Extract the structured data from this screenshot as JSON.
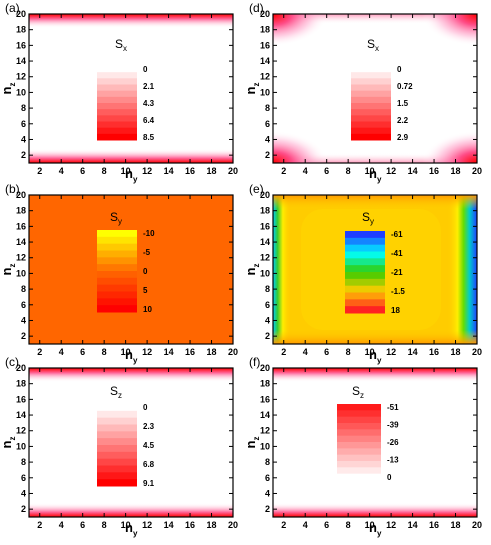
{
  "chart_data": [
    {
      "panel": "(a)",
      "type": "heatmap",
      "component": "S",
      "subscript": "x",
      "xlabel": "n",
      "xlabel_sub": "y",
      "ylabel": "n",
      "ylabel_sub": "z",
      "x_ticks": [
        "2",
        "4",
        "6",
        "8",
        "10",
        "12",
        "14",
        "16",
        "18",
        "20"
      ],
      "y_ticks": [
        "2",
        "4",
        "6",
        "8",
        "10",
        "12",
        "14",
        "16",
        "18",
        "20"
      ],
      "xlim": [
        1,
        20
      ],
      "ylim": [
        1,
        20
      ],
      "colorbar": {
        "ticks": [
          "0",
          "2.1",
          "4.3",
          "6.4",
          "8.5"
        ],
        "values": [
          0,
          2.1,
          4.3,
          6.4,
          8.5
        ],
        "colors": [
          "#ffffff",
          "#ff0000"
        ]
      },
      "pattern": "edges-z"
    },
    {
      "panel": "(b)",
      "type": "heatmap",
      "component": "S",
      "subscript": "y",
      "xlabel": "n",
      "xlabel_sub": "y",
      "ylabel": "n",
      "ylabel_sub": "z",
      "x_ticks": [
        "2",
        "4",
        "6",
        "8",
        "10",
        "12",
        "14",
        "16",
        "18",
        "20"
      ],
      "y_ticks": [
        "2",
        "4",
        "6",
        "8",
        "10",
        "12",
        "14",
        "16",
        "18",
        "20"
      ],
      "xlim": [
        1,
        20
      ],
      "ylim": [
        1,
        20
      ],
      "colorbar": {
        "ticks": [
          "-10",
          "-5",
          "0",
          "5",
          "10"
        ],
        "values": [
          -10,
          -5,
          0,
          5,
          10
        ],
        "colors": [
          "#ffff00",
          "#ff6a00",
          "#ff0000"
        ]
      },
      "pattern": "uniform",
      "uniform_color": "#ff6600"
    },
    {
      "panel": "(c)",
      "type": "heatmap",
      "component": "S",
      "subscript": "z",
      "xlabel": "n",
      "xlabel_sub": "y",
      "ylabel": "n",
      "ylabel_sub": "z",
      "x_ticks": [
        "2",
        "4",
        "6",
        "8",
        "10",
        "12",
        "14",
        "16",
        "18",
        "20"
      ],
      "y_ticks": [
        "2",
        "4",
        "6",
        "8",
        "10",
        "12",
        "14",
        "16",
        "18",
        "20"
      ],
      "xlim": [
        1,
        20
      ],
      "ylim": [
        1,
        20
      ],
      "colorbar": {
        "ticks": [
          "0",
          "2.3",
          "4.5",
          "6.8",
          "9.1"
        ],
        "values": [
          0,
          2.3,
          4.5,
          6.8,
          9.1
        ],
        "colors": [
          "#ffffff",
          "#ff0000"
        ]
      },
      "pattern": "edges-z"
    },
    {
      "panel": "(d)",
      "type": "heatmap",
      "component": "S",
      "subscript": "x",
      "xlabel": "n",
      "xlabel_sub": "y",
      "ylabel": "n",
      "ylabel_sub": "z",
      "x_ticks": [
        "2",
        "4",
        "6",
        "8",
        "10",
        "12",
        "14",
        "16",
        "18",
        "20"
      ],
      "y_ticks": [
        "2",
        "4",
        "6",
        "8",
        "10",
        "12",
        "14",
        "16",
        "18",
        "20"
      ],
      "xlim": [
        1,
        20
      ],
      "ylim": [
        1,
        20
      ],
      "colorbar": {
        "ticks": [
          "0",
          "0.72",
          "1.5",
          "2.2",
          "2.9"
        ],
        "values": [
          0,
          0.72,
          1.5,
          2.2,
          2.9
        ],
        "colors": [
          "#ffffff",
          "#ff0000"
        ]
      },
      "pattern": "corners"
    },
    {
      "panel": "(e)",
      "type": "heatmap",
      "component": "S",
      "subscript": "y",
      "xlabel": "n",
      "xlabel_sub": "y",
      "ylabel": "n",
      "ylabel_sub": "z",
      "x_ticks": [
        "2",
        "4",
        "6",
        "8",
        "10",
        "12",
        "14",
        "16",
        "18",
        "20"
      ],
      "y_ticks": [
        "2",
        "4",
        "6",
        "8",
        "10",
        "12",
        "14",
        "16",
        "18",
        "20"
      ],
      "xlim": [
        1,
        20
      ],
      "ylim": [
        1,
        20
      ],
      "colorbar": {
        "ticks": [
          "-61",
          "-41",
          "-21",
          "-1.5",
          "18"
        ],
        "values": [
          -61,
          -41,
          -21,
          -1.5,
          18
        ],
        "colors": [
          "#1f3fff",
          "#00ffff",
          "#33cc00",
          "#ffcc00",
          "#ff2222"
        ]
      },
      "pattern": "edges-y-spectrum"
    },
    {
      "panel": "(f)",
      "type": "heatmap",
      "component": "S",
      "subscript": "z",
      "xlabel": "n",
      "xlabel_sub": "y",
      "ylabel": "n",
      "ylabel_sub": "z",
      "x_ticks": [
        "2",
        "4",
        "6",
        "8",
        "10",
        "12",
        "14",
        "16",
        "18",
        "20"
      ],
      "y_ticks": [
        "2",
        "4",
        "6",
        "8",
        "10",
        "12",
        "14",
        "16",
        "18",
        "20"
      ],
      "xlim": [
        1,
        20
      ],
      "ylim": [
        1,
        20
      ],
      "colorbar": {
        "ticks": [
          "-51",
          "-39",
          "-26",
          "-13",
          "0"
        ],
        "values": [
          -51,
          -39,
          -26,
          -13,
          0
        ],
        "colors": [
          "#ff1a1a",
          "#ffffff"
        ]
      },
      "pattern": "edges-z"
    }
  ]
}
